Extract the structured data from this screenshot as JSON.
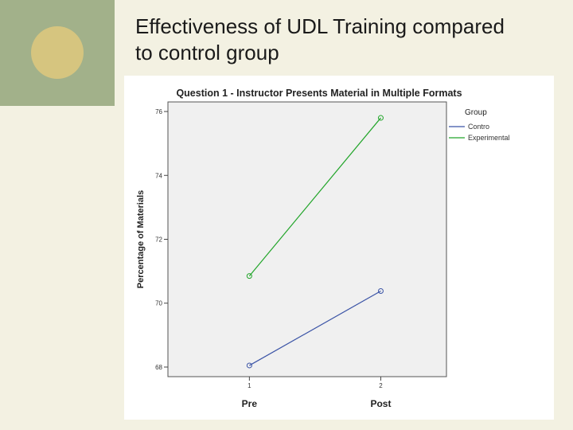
{
  "slide": {
    "title": "Effectiveness of UDL Training compared\nto control group"
  },
  "colors": {
    "background": "#f3f1e2",
    "accent_block": "#a2b18a",
    "accent_circle": "#d6c57f",
    "plot_area": "#f0f0f0",
    "control": "#3b54a6",
    "experimental": "#22a52a"
  },
  "chart_data": {
    "type": "line",
    "title": "Question 1 - Instructor Presents Material in Multiple Formats",
    "xlabel": "",
    "ylabel": "Percentage of Materials",
    "x": [
      1,
      2
    ],
    "x_tick_labels": [
      "1",
      "2"
    ],
    "x_category_labels": [
      "Pre",
      "Post"
    ],
    "xlim": [
      0.38,
      2.5
    ],
    "ylim": [
      67.7,
      76.3
    ],
    "y_ticks": [
      68,
      70,
      72,
      74,
      76
    ],
    "legend": {
      "title": "Group",
      "position": "top-right outside",
      "entries": [
        "Contro",
        "Experimental"
      ]
    },
    "grid": false,
    "series": [
      {
        "name": "Contro",
        "color": "#3b54a6",
        "values": [
          68.05,
          70.38
        ]
      },
      {
        "name": "Experimental",
        "color": "#22a52a",
        "values": [
          70.85,
          75.8
        ]
      }
    ]
  }
}
